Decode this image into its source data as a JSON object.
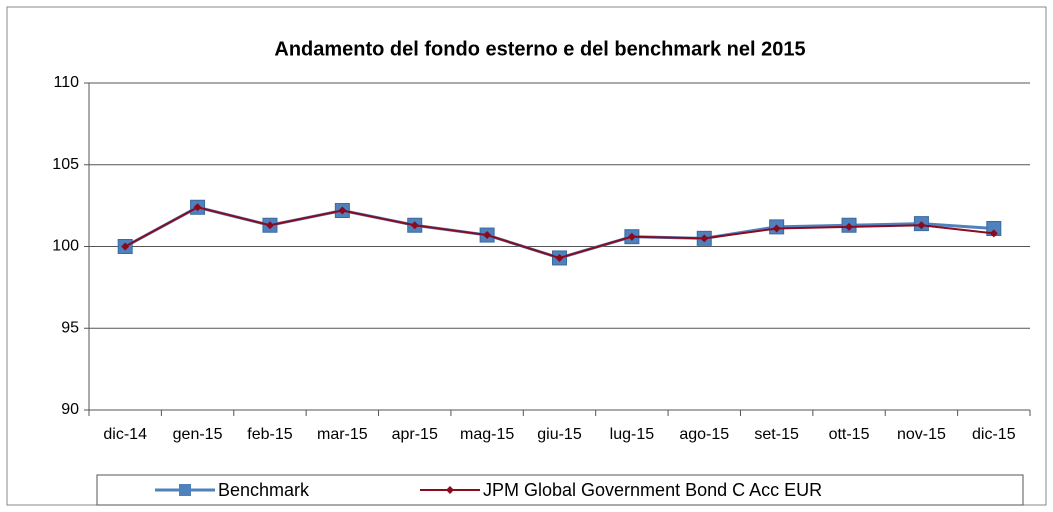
{
  "chart_data": {
    "type": "line",
    "title": "Andamento del fondo esterno e del benchmark nel 2015",
    "categories": [
      "dic-14",
      "gen-15",
      "feb-15",
      "mar-15",
      "apr-15",
      "mag-15",
      "giu-15",
      "lug-15",
      "ago-15",
      "set-15",
      "ott-15",
      "nov-15",
      "dic-15"
    ],
    "series": [
      {
        "name": "Benchmark",
        "color": "#4f81bd",
        "values": [
          100,
          102.4,
          101.3,
          102.2,
          101.3,
          100.7,
          99.3,
          100.6,
          100.5,
          101.2,
          101.3,
          101.4,
          101.1
        ]
      },
      {
        "name": "JPM Global Government Bond C Acc EUR",
        "color": "#8b0a1e",
        "values": [
          100,
          102.4,
          101.3,
          102.2,
          101.3,
          100.7,
          99.3,
          100.6,
          100.5,
          101.1,
          101.2,
          101.3,
          100.8
        ]
      }
    ],
    "ylim": [
      90,
      110
    ],
    "yticks": [
      90,
      95,
      100,
      105,
      110
    ],
    "grid": true,
    "legend": "bottom"
  }
}
